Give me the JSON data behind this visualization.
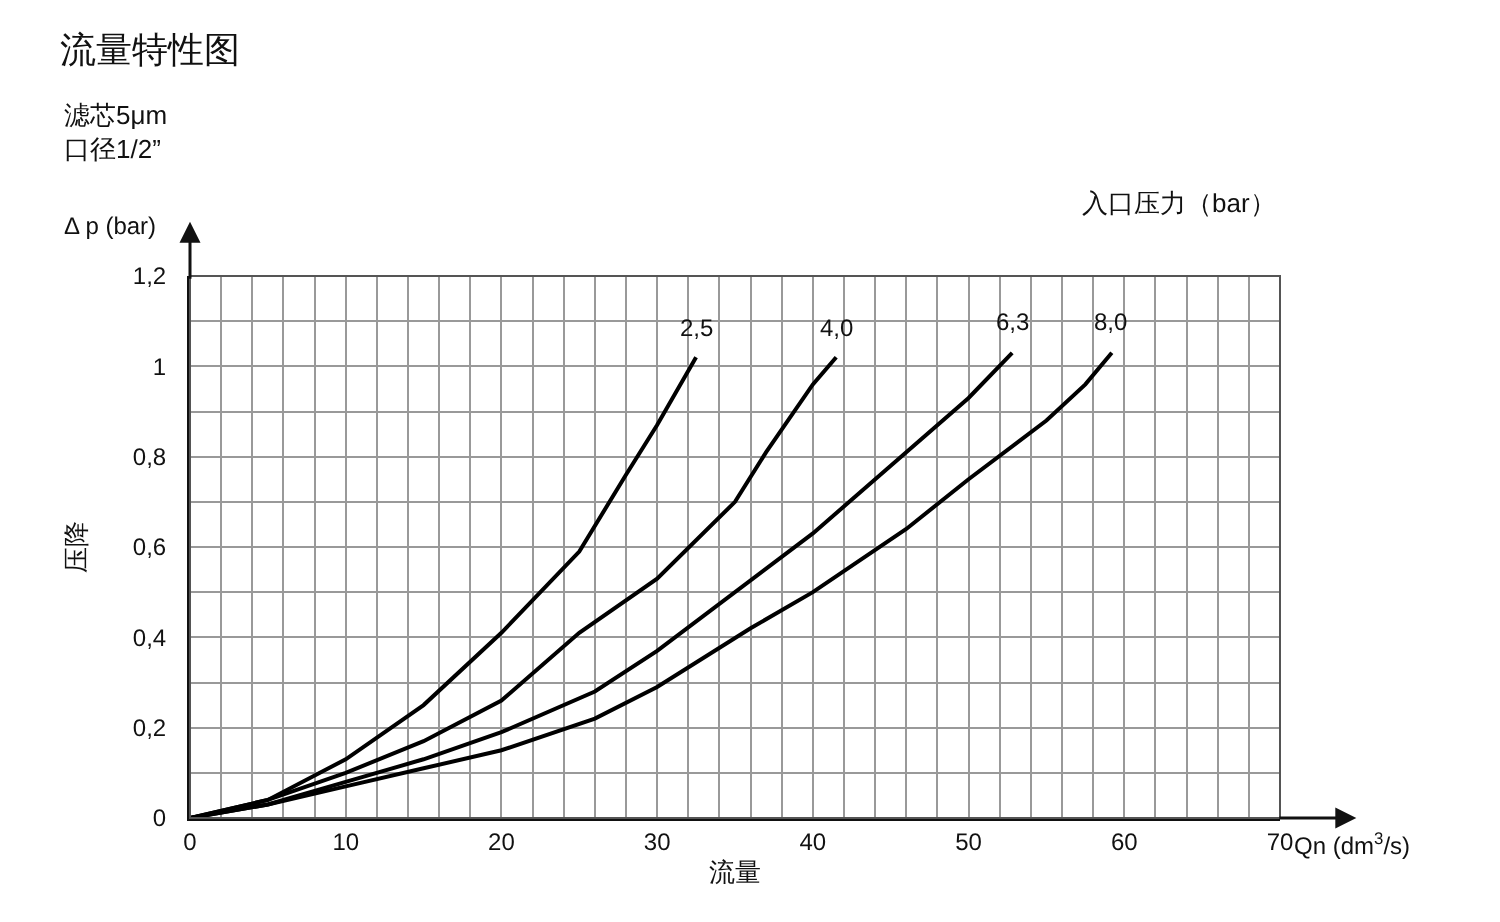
{
  "chart_data": {
    "type": "line",
    "title": "流量特性图",
    "subtitle": "滤芯5μm\n口径1/2”",
    "xlabel": "流量",
    "ylabel": "压降",
    "legend_title": "入口压力（bar）",
    "annotations": [
      "Δ p (bar)",
      "Qn (dm$^{3}$/s)"
    ],
    "series": [
      {
        "name": "2,5",
        "color": "#000000",
        "x": [
          0,
          5,
          10,
          15,
          20,
          25,
          28,
          30,
          32.5
        ],
        "values": [
          0,
          0.04,
          0.13,
          0.25,
          0.41,
          0.59,
          0.76,
          0.87,
          1.02
        ]
      },
      {
        "name": "4,0",
        "color": "#000000",
        "x": [
          0,
          5,
          10,
          15,
          20,
          25,
          30,
          35,
          37,
          40,
          41.5
        ],
        "values": [
          0,
          0.04,
          0.1,
          0.17,
          0.26,
          0.41,
          0.53,
          0.7,
          0.81,
          0.96,
          1.02
        ]
      },
      {
        "name": "6,3",
        "color": "#000000",
        "x": [
          0,
          5,
          10,
          15,
          20,
          26,
          30,
          40,
          45,
          50,
          52.8
        ],
        "values": [
          0,
          0.03,
          0.08,
          0.13,
          0.19,
          0.28,
          0.37,
          0.63,
          0.78,
          0.93,
          1.03
        ]
      },
      {
        "name": "8,0",
        "color": "#000000",
        "x": [
          0,
          5,
          10,
          15,
          20,
          26,
          30,
          36,
          40,
          46,
          50,
          55,
          57.5,
          59.2
        ],
        "values": [
          0,
          0.03,
          0.07,
          0.11,
          0.15,
          0.22,
          0.29,
          0.42,
          0.5,
          0.64,
          0.75,
          0.88,
          0.96,
          1.03
        ]
      }
    ],
    "xlim": [
      0,
      70
    ],
    "xticks": [
      0,
      10,
      20,
      30,
      40,
      50,
      60,
      70
    ],
    "ylim": [
      0,
      1.2
    ],
    "yticks": [
      0,
      {
        "value": 0.2,
        "label": "0,2"
      },
      {
        "value": 0.4,
        "label": "0,4"
      },
      {
        "value": 0.6,
        "label": "0,6"
      },
      {
        "value": 0.8,
        "label": "0,8"
      },
      1,
      {
        "value": 1.2,
        "label": "1,2"
      }
    ],
    "grid": true,
    "legend": false,
    "marker": "none",
    "line_style": "solid"
  }
}
